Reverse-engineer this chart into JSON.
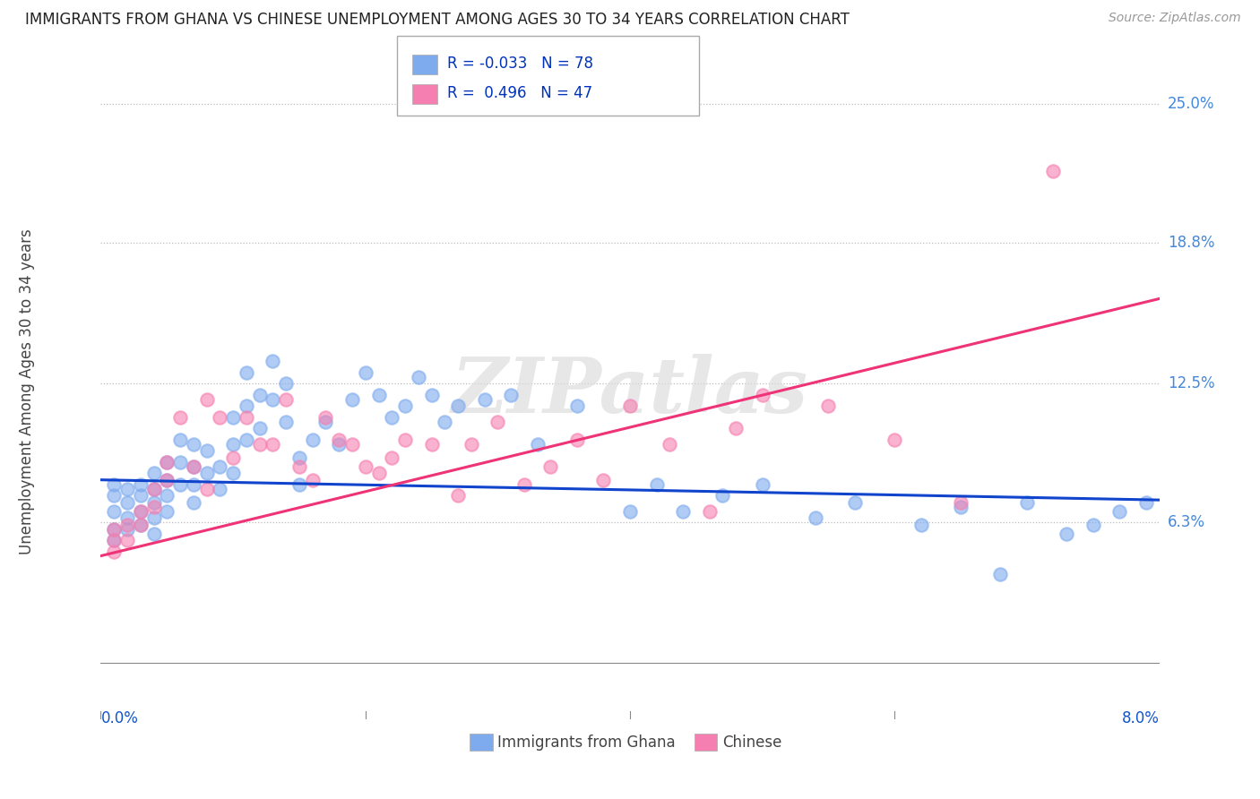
{
  "title": "IMMIGRANTS FROM GHANA VS CHINESE UNEMPLOYMENT AMONG AGES 30 TO 34 YEARS CORRELATION CHART",
  "source": "Source: ZipAtlas.com",
  "ylabel": "Unemployment Among Ages 30 to 34 years",
  "ytick_labels": [
    "6.3%",
    "12.5%",
    "18.8%",
    "25.0%"
  ],
  "ytick_values": [
    0.063,
    0.125,
    0.188,
    0.25
  ],
  "xmin": 0.0,
  "xmax": 0.08,
  "ymin": -0.025,
  "ymax": 0.268,
  "ghana_color": "#7eaaee",
  "chinese_color": "#f57fb0",
  "ghana_R": -0.033,
  "ghana_N": 78,
  "chinese_R": 0.496,
  "chinese_N": 47,
  "watermark": "ZIPatlas",
  "ghana_trend_x": [
    0.0,
    0.08
  ],
  "ghana_trend_y": [
    0.082,
    0.073
  ],
  "chinese_trend_x": [
    0.0,
    0.08
  ],
  "chinese_trend_y": [
    0.048,
    0.163
  ],
  "ghana_x": [
    0.001,
    0.001,
    0.001,
    0.001,
    0.001,
    0.002,
    0.002,
    0.002,
    0.002,
    0.003,
    0.003,
    0.003,
    0.003,
    0.004,
    0.004,
    0.004,
    0.004,
    0.004,
    0.005,
    0.005,
    0.005,
    0.005,
    0.006,
    0.006,
    0.006,
    0.007,
    0.007,
    0.007,
    0.007,
    0.008,
    0.008,
    0.009,
    0.009,
    0.01,
    0.01,
    0.01,
    0.011,
    0.011,
    0.011,
    0.012,
    0.012,
    0.013,
    0.013,
    0.014,
    0.014,
    0.015,
    0.015,
    0.016,
    0.017,
    0.018,
    0.019,
    0.02,
    0.021,
    0.022,
    0.023,
    0.024,
    0.025,
    0.026,
    0.027,
    0.029,
    0.031,
    0.033,
    0.036,
    0.04,
    0.042,
    0.044,
    0.047,
    0.05,
    0.054,
    0.057,
    0.062,
    0.065,
    0.068,
    0.07,
    0.073,
    0.075,
    0.077,
    0.079
  ],
  "ghana_y": [
    0.075,
    0.08,
    0.068,
    0.06,
    0.055,
    0.078,
    0.072,
    0.065,
    0.06,
    0.08,
    0.075,
    0.068,
    0.062,
    0.085,
    0.078,
    0.072,
    0.065,
    0.058,
    0.09,
    0.082,
    0.075,
    0.068,
    0.1,
    0.09,
    0.08,
    0.098,
    0.088,
    0.08,
    0.072,
    0.095,
    0.085,
    0.088,
    0.078,
    0.11,
    0.098,
    0.085,
    0.13,
    0.115,
    0.1,
    0.12,
    0.105,
    0.135,
    0.118,
    0.125,
    0.108,
    0.092,
    0.08,
    0.1,
    0.108,
    0.098,
    0.118,
    0.13,
    0.12,
    0.11,
    0.115,
    0.128,
    0.12,
    0.108,
    0.115,
    0.118,
    0.12,
    0.098,
    0.115,
    0.068,
    0.08,
    0.068,
    0.075,
    0.08,
    0.065,
    0.072,
    0.062,
    0.07,
    0.04,
    0.072,
    0.058,
    0.062,
    0.068,
    0.072
  ],
  "chinese_x": [
    0.001,
    0.001,
    0.001,
    0.002,
    0.002,
    0.003,
    0.003,
    0.004,
    0.004,
    0.005,
    0.005,
    0.006,
    0.007,
    0.008,
    0.009,
    0.01,
    0.011,
    0.012,
    0.013,
    0.014,
    0.015,
    0.016,
    0.017,
    0.018,
    0.019,
    0.02,
    0.021,
    0.022,
    0.023,
    0.025,
    0.027,
    0.028,
    0.03,
    0.032,
    0.034,
    0.036,
    0.038,
    0.04,
    0.043,
    0.046,
    0.05,
    0.055,
    0.06,
    0.065,
    0.072,
    0.048,
    0.008
  ],
  "chinese_y": [
    0.06,
    0.055,
    0.05,
    0.062,
    0.055,
    0.068,
    0.062,
    0.078,
    0.07,
    0.09,
    0.082,
    0.11,
    0.088,
    0.078,
    0.11,
    0.092,
    0.11,
    0.098,
    0.098,
    0.118,
    0.088,
    0.082,
    0.11,
    0.1,
    0.098,
    0.088,
    0.085,
    0.092,
    0.1,
    0.098,
    0.075,
    0.098,
    0.108,
    0.08,
    0.088,
    0.1,
    0.082,
    0.115,
    0.098,
    0.068,
    0.12,
    0.115,
    0.1,
    0.072,
    0.22,
    0.105,
    0.118
  ]
}
